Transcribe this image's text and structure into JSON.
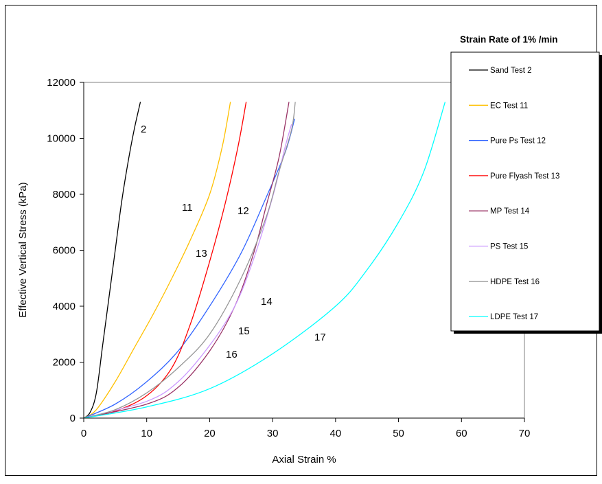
{
  "chart_data": {
    "type": "line",
    "title": "Strain Rate of 1% /min",
    "xlabel": "Axial Strain %",
    "ylabel": "Effective Vertical Stress (kPa)",
    "xlim": [
      0,
      70
    ],
    "ylim": [
      0,
      12000
    ],
    "xticks": [
      "0",
      "10",
      "20",
      "30",
      "40",
      "50",
      "60",
      "70"
    ],
    "yticks": [
      "0",
      "2000",
      "4000",
      "6000",
      "8000",
      "10000",
      "12000"
    ],
    "grid": false,
    "legend_position": "right",
    "series": [
      {
        "name": "Sand Test 2",
        "label": "2",
        "color": "#000000",
        "points": [
          [
            0,
            0
          ],
          [
            1,
            200
          ],
          [
            2,
            900
          ],
          [
            3,
            2600
          ],
          [
            4,
            4300
          ],
          [
            5,
            6000
          ],
          [
            6,
            7700
          ],
          [
            7,
            9100
          ],
          [
            8,
            10300
          ],
          [
            9,
            11300
          ]
        ]
      },
      {
        "name": "EC Test 11",
        "label": "11",
        "color": "#ffc000",
        "points": [
          [
            0,
            0
          ],
          [
            2,
            300
          ],
          [
            5,
            1300
          ],
          [
            8,
            2500
          ],
          [
            11,
            3700
          ],
          [
            14,
            5000
          ],
          [
            17,
            6400
          ],
          [
            20,
            8000
          ],
          [
            22,
            9700
          ],
          [
            23.3,
            11300
          ]
        ]
      },
      {
        "name": "Pure Ps Test 12",
        "label": "12",
        "color": "#3366ff",
        "points": [
          [
            0,
            0
          ],
          [
            5,
            500
          ],
          [
            10,
            1300
          ],
          [
            15,
            2400
          ],
          [
            20,
            4000
          ],
          [
            25,
            5900
          ],
          [
            29,
            7900
          ],
          [
            32,
            9500
          ],
          [
            33.5,
            10700
          ]
        ]
      },
      {
        "name": "Pure Flyash Test 13",
        "label": "13",
        "color": "#ff0000",
        "points": [
          [
            0,
            0
          ],
          [
            5,
            250
          ],
          [
            10,
            800
          ],
          [
            14,
            1800
          ],
          [
            17,
            3400
          ],
          [
            20,
            5600
          ],
          [
            22.5,
            7700
          ],
          [
            24.5,
            9700
          ],
          [
            25.8,
            11300
          ]
        ]
      },
      {
        "name": "MP Test 14",
        "label": "14",
        "color": "#993366",
        "points": [
          [
            0,
            0
          ],
          [
            10,
            500
          ],
          [
            15,
            1100
          ],
          [
            20,
            2400
          ],
          [
            24,
            4000
          ],
          [
            27,
            5900
          ],
          [
            29,
            7600
          ],
          [
            31,
            9300
          ],
          [
            32.6,
            11300
          ]
        ]
      },
      {
        "name": "PS Test 15",
        "label": "15",
        "color": "#cc99ff",
        "points": [
          [
            0,
            0
          ],
          [
            10,
            600
          ],
          [
            15,
            1300
          ],
          [
            20,
            2600
          ],
          [
            24,
            4000
          ],
          [
            27,
            5700
          ],
          [
            30,
            7900
          ],
          [
            32,
            9700
          ],
          [
            33,
            10500
          ]
        ]
      },
      {
        "name": "HDPE Test 16",
        "label": "16",
        "color": "#969696",
        "points": [
          [
            0,
            0
          ],
          [
            5,
            300
          ],
          [
            10,
            900
          ],
          [
            15,
            1800
          ],
          [
            20,
            3000
          ],
          [
            25,
            5000
          ],
          [
            29,
            7200
          ],
          [
            31,
            8800
          ],
          [
            33,
            10300
          ],
          [
            33.6,
            11300
          ]
        ]
      },
      {
        "name": "LDPE Test 17",
        "label": "17",
        "color": "#00ffff",
        "points": [
          [
            0,
            0
          ],
          [
            10,
            400
          ],
          [
            20,
            1050
          ],
          [
            30,
            2300
          ],
          [
            40,
            4000
          ],
          [
            45,
            5300
          ],
          [
            50,
            7000
          ],
          [
            54,
            8800
          ],
          [
            57.4,
            11300
          ]
        ]
      }
    ]
  }
}
